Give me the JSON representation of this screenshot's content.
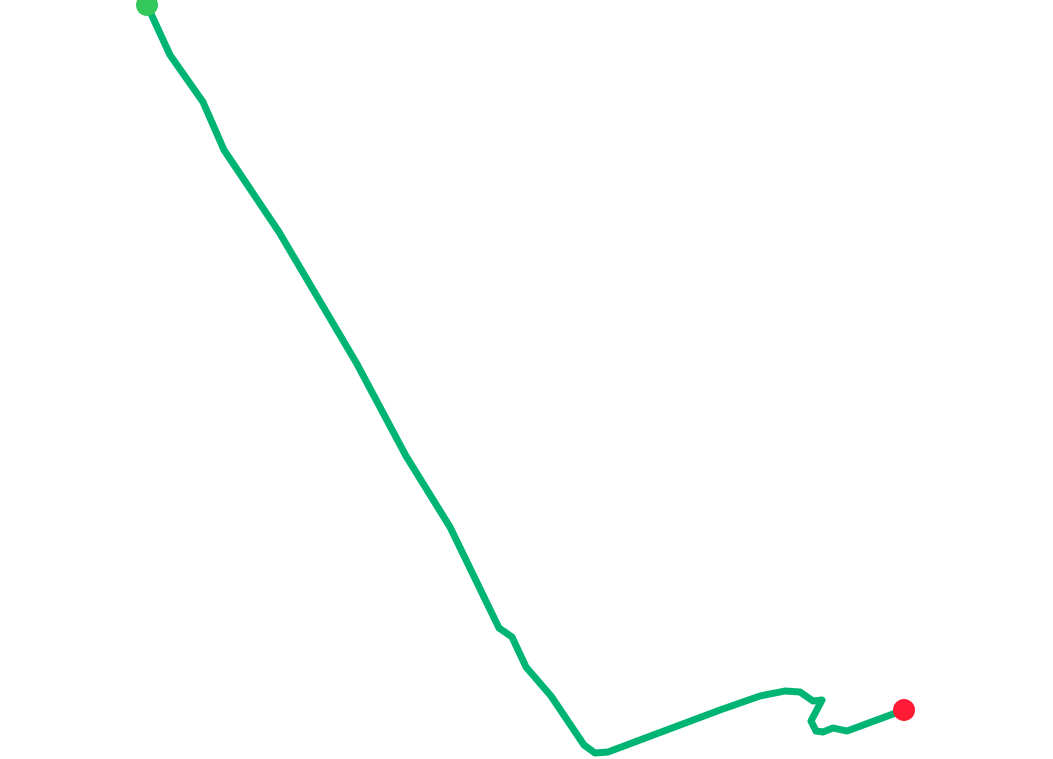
{
  "map": {
    "background_color": "#ffffff",
    "route": {
      "color": "#00b574"
    },
    "markers": [
      {
        "name": "start-marker",
        "color": "#34c759"
      },
      {
        "name": "end-marker",
        "color": "#ff1a35"
      }
    ]
  }
}
